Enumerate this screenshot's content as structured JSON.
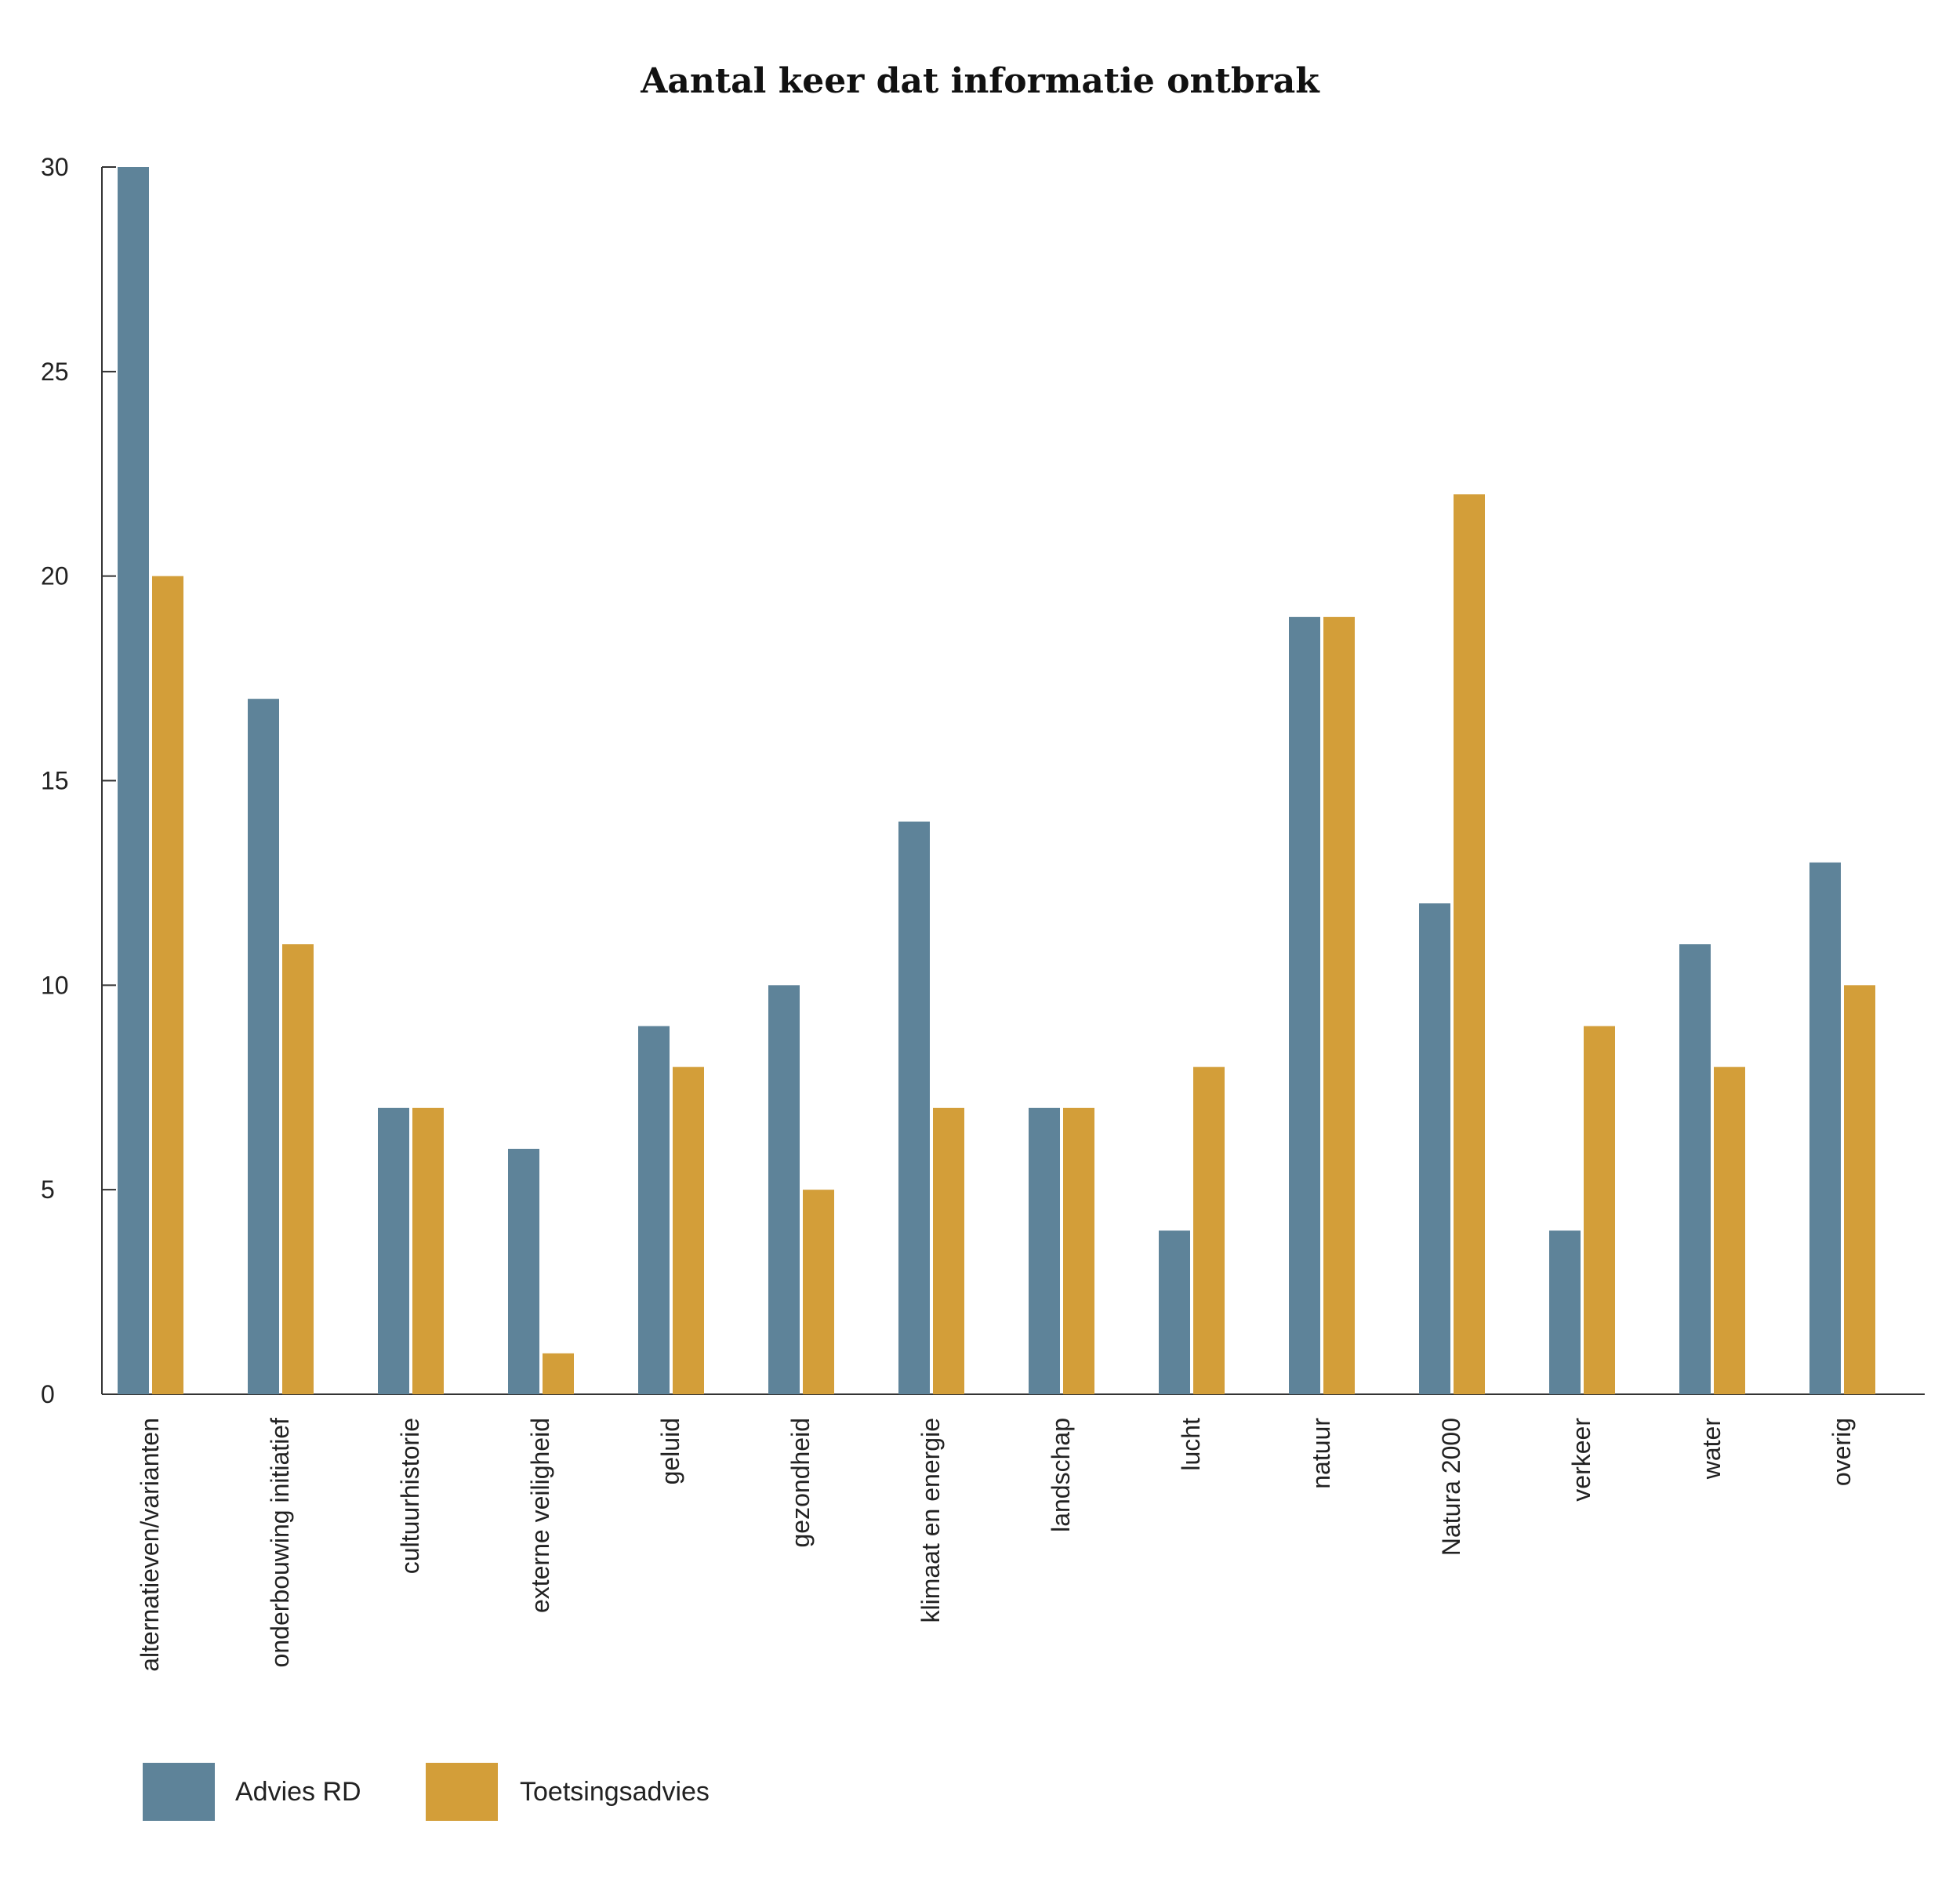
{
  "chart_data": {
    "type": "bar",
    "title": "Aantal keer dat informatie ontbrak",
    "xlabel": "",
    "ylabel": "",
    "ylim": [
      0,
      30
    ],
    "yticks": [
      0,
      5,
      10,
      15,
      20,
      25,
      30
    ],
    "categories": [
      "alternatieven/varianten",
      "onderbouwing initiatief",
      "cultuurhistorie",
      "externe veiligheid",
      "geluid",
      "gezondheid",
      "klimaat en energie",
      "landschap",
      "lucht",
      "natuur",
      "Natura 2000",
      "verkeer",
      "water",
      "overig"
    ],
    "series": [
      {
        "name": "Advies RD",
        "color": "#5e8399",
        "values": [
          30,
          17,
          7,
          6,
          9,
          10,
          14,
          7,
          4,
          19,
          12,
          4,
          11,
          13
        ]
      },
      {
        "name": "Toetsingsadvies",
        "color": "#d39e39",
        "values": [
          20,
          11,
          7,
          1,
          8,
          5,
          7,
          7,
          8,
          19,
          22,
          9,
          8,
          10
        ]
      }
    ],
    "legend": "bottom-left",
    "grid": false
  }
}
